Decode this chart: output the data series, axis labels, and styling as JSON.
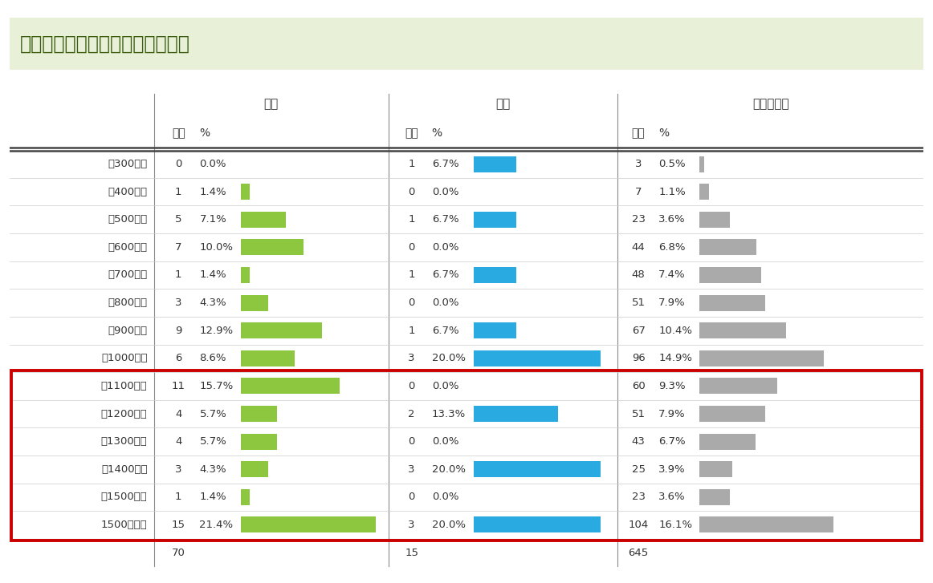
{
  "title": "年収：世帯年収を教えてください",
  "categories": [
    "〜300万円",
    "〜400万円",
    "〜500万円",
    "〜600万円",
    "〜700万円",
    "〜800万円",
    "〜900万円",
    "〜1000万円",
    "〜1100万円",
    "〜1200万円",
    "〜1300万円",
    "〜1400万円",
    "〜1500万円",
    "1500万円〜"
  ],
  "jihan_count": [
    0,
    1,
    5,
    7,
    1,
    3,
    9,
    6,
    11,
    4,
    4,
    3,
    1,
    15
  ],
  "jihan_pct": [
    0.0,
    1.4,
    7.1,
    10.0,
    1.4,
    4.3,
    12.9,
    8.6,
    15.7,
    5.7,
    5.7,
    4.3,
    1.4,
    21.4
  ],
  "jihan_total": 70,
  "gyohan_count": [
    1,
    0,
    1,
    0,
    1,
    0,
    1,
    3,
    0,
    2,
    0,
    3,
    0,
    3
  ],
  "gyohan_pct": [
    6.7,
    0.0,
    6.7,
    0.0,
    6.7,
    0.0,
    6.7,
    20.0,
    0.0,
    13.3,
    0.0,
    20.0,
    0.0,
    20.0
  ],
  "gyohan_total": 15,
  "area_count": [
    3,
    7,
    23,
    44,
    48,
    51,
    67,
    96,
    60,
    51,
    43,
    25,
    23,
    104
  ],
  "area_pct": [
    0.5,
    1.1,
    3.6,
    6.8,
    7.4,
    7.9,
    10.4,
    14.9,
    9.3,
    7.9,
    6.7,
    3.9,
    3.6,
    16.1
  ],
  "area_total": 645,
  "highlight_rows": [
    8,
    9,
    10,
    11,
    12,
    13
  ],
  "col_headers_top": [
    "自販",
    "業販",
    "エリア比較"
  ],
  "col_headers_sub": [
    "実数",
    "%",
    "実数",
    "%",
    "実数",
    "%"
  ],
  "bar_color_green": "#8dc63f",
  "bar_color_blue": "#29abe2",
  "bar_color_gray": "#aaaaaa",
  "title_bg_color": "#e8f0d8",
  "highlight_border_color": "#cc0000",
  "title_text_color": "#3a5c0e",
  "background_color": "#ffffff",
  "max_pct": 21.4
}
